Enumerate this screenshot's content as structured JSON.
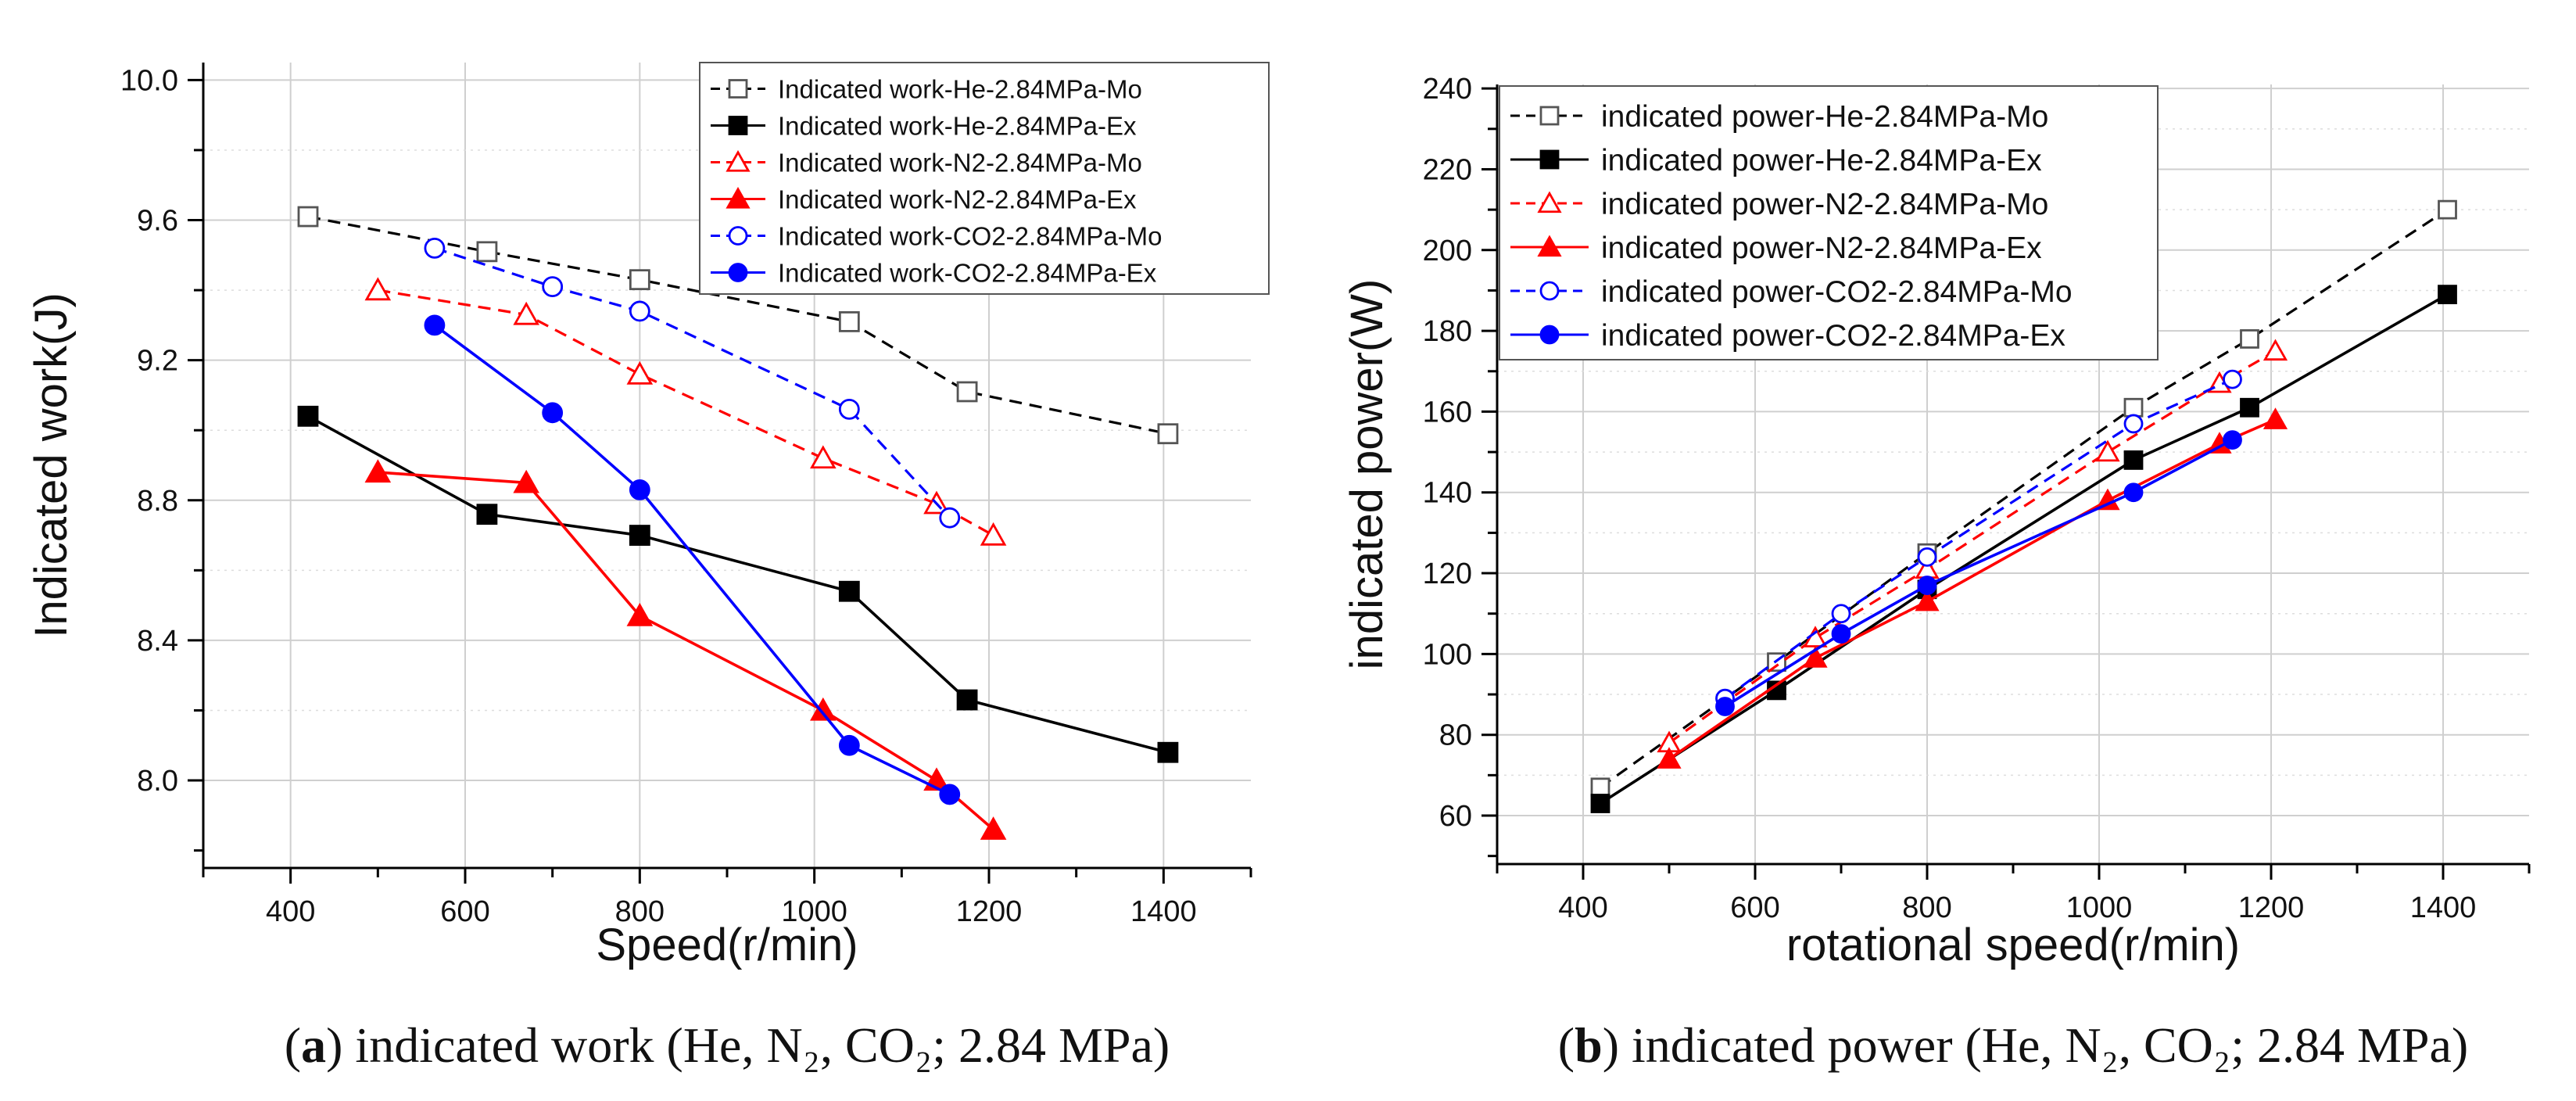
{
  "chart_data": [
    {
      "type": "line",
      "panel": "a",
      "xlabel": "Speed(r/min)",
      "ylabel": "Indicated work(J)",
      "xlim": [
        300,
        1500
      ],
      "ylim": [
        7.75,
        10.05
      ],
      "xticks": [
        400,
        600,
        800,
        1000,
        1200,
        1400
      ],
      "yticks": [
        8.0,
        8.4,
        8.8,
        9.2,
        9.6,
        10.0
      ],
      "ytick_labels": [
        "8.0",
        "8.4",
        "8.8",
        "9.2",
        "9.6",
        "10.0"
      ],
      "grid": true,
      "legend_position": "top-right",
      "caption": {
        "letter": "a",
        "text": "indicated work (He, N₂, CO₂; 2.84 MPa)"
      },
      "series": [
        {
          "name": "Indicated work-He-2.84MPa-Mo",
          "color": "#000000",
          "dash": true,
          "marker": "square",
          "filled": false,
          "x": [
            420,
            625,
            800,
            1040,
            1175,
            1405
          ],
          "y": [
            9.61,
            9.51,
            9.43,
            9.31,
            9.11,
            8.99
          ]
        },
        {
          "name": "Indicated work-He-2.84MPa-Ex",
          "color": "#000000",
          "dash": false,
          "marker": "square",
          "filled": true,
          "x": [
            420,
            625,
            800,
            1040,
            1175,
            1405
          ],
          "y": [
            9.04,
            8.76,
            8.7,
            8.54,
            8.23,
            8.08
          ]
        },
        {
          "name": "Indicated work-N2-2.84MPa-Mo",
          "color": "#ff0000",
          "dash": true,
          "marker": "triangle",
          "filled": false,
          "x": [
            500,
            670,
            800,
            1010,
            1140,
            1205
          ],
          "y": [
            9.4,
            9.33,
            9.16,
            8.92,
            8.79,
            8.7
          ]
        },
        {
          "name": "Indicated work-N2-2.84MPa-Ex",
          "color": "#ff0000",
          "dash": false,
          "marker": "triangle",
          "filled": true,
          "x": [
            500,
            670,
            800,
            1010,
            1140,
            1205
          ],
          "y": [
            8.88,
            8.85,
            8.47,
            8.2,
            8.0,
            7.86
          ]
        },
        {
          "name": "Indicated work-CO2-2.84MPa-Mo",
          "color": "#0000ff",
          "dash": true,
          "marker": "circle",
          "filled": false,
          "x": [
            565,
            700,
            800,
            1040,
            1155
          ],
          "y": [
            9.52,
            9.41,
            9.34,
            9.06,
            8.75
          ]
        },
        {
          "name": "Indicated work-CO2-2.84MPa-Ex",
          "color": "#0000ff",
          "dash": false,
          "marker": "circle",
          "filled": true,
          "x": [
            565,
            700,
            800,
            1040,
            1155
          ],
          "y": [
            9.3,
            9.05,
            8.83,
            8.1,
            7.96
          ]
        }
      ]
    },
    {
      "type": "line",
      "panel": "b",
      "xlabel": "rotational speed(r/min)",
      "ylabel": "indicated power(W)",
      "xlim": [
        300,
        1500
      ],
      "ylim": [
        48,
        241
      ],
      "xticks": [
        400,
        600,
        800,
        1000,
        1200,
        1400
      ],
      "yticks": [
        60,
        80,
        100,
        120,
        140,
        160,
        180,
        200,
        220,
        240
      ],
      "ytick_labels": [
        "60",
        "80",
        "100",
        "120",
        "140",
        "160",
        "180",
        "200",
        "220",
        "240"
      ],
      "grid": true,
      "legend_position": "top-left",
      "caption": {
        "letter": "b",
        "text": "indicated power (He, N₂, CO₂; 2.84 MPa)"
      },
      "series": [
        {
          "name": "indicated power-He-2.84MPa-Mo",
          "color": "#000000",
          "dash": true,
          "marker": "square",
          "filled": false,
          "x": [
            420,
            625,
            800,
            1040,
            1175,
            1405
          ],
          "y": [
            67,
            98,
            125,
            161,
            178,
            210
          ]
        },
        {
          "name": "indicated power-He-2.84MPa-Ex",
          "color": "#000000",
          "dash": false,
          "marker": "square",
          "filled": true,
          "x": [
            420,
            625,
            800,
            1040,
            1175,
            1405
          ],
          "y": [
            63,
            91,
            116,
            148,
            161,
            189
          ]
        },
        {
          "name": "indicated power-N2-2.84MPa-Mo",
          "color": "#ff0000",
          "dash": true,
          "marker": "triangle",
          "filled": false,
          "x": [
            500,
            670,
            800,
            1010,
            1140,
            1205
          ],
          "y": [
            78,
            104,
            121,
            150,
            167,
            175
          ]
        },
        {
          "name": "indicated power-N2-2.84MPa-Ex",
          "color": "#ff0000",
          "dash": false,
          "marker": "triangle",
          "filled": true,
          "x": [
            500,
            670,
            800,
            1010,
            1140,
            1205
          ],
          "y": [
            74,
            99,
            113,
            138,
            152,
            158
          ]
        },
        {
          "name": "indicated power-CO2-2.84MPa-Mo",
          "color": "#0000ff",
          "dash": true,
          "marker": "circle",
          "filled": false,
          "x": [
            565,
            700,
            800,
            1040,
            1155
          ],
          "y": [
            89,
            110,
            124,
            157,
            168
          ]
        },
        {
          "name": "indicated power-CO2-2.84MPa-Ex",
          "color": "#0000ff",
          "dash": false,
          "marker": "circle",
          "filled": true,
          "x": [
            565,
            700,
            800,
            1040,
            1155
          ],
          "y": [
            87,
            105,
            117,
            140,
            153
          ]
        }
      ]
    }
  ]
}
